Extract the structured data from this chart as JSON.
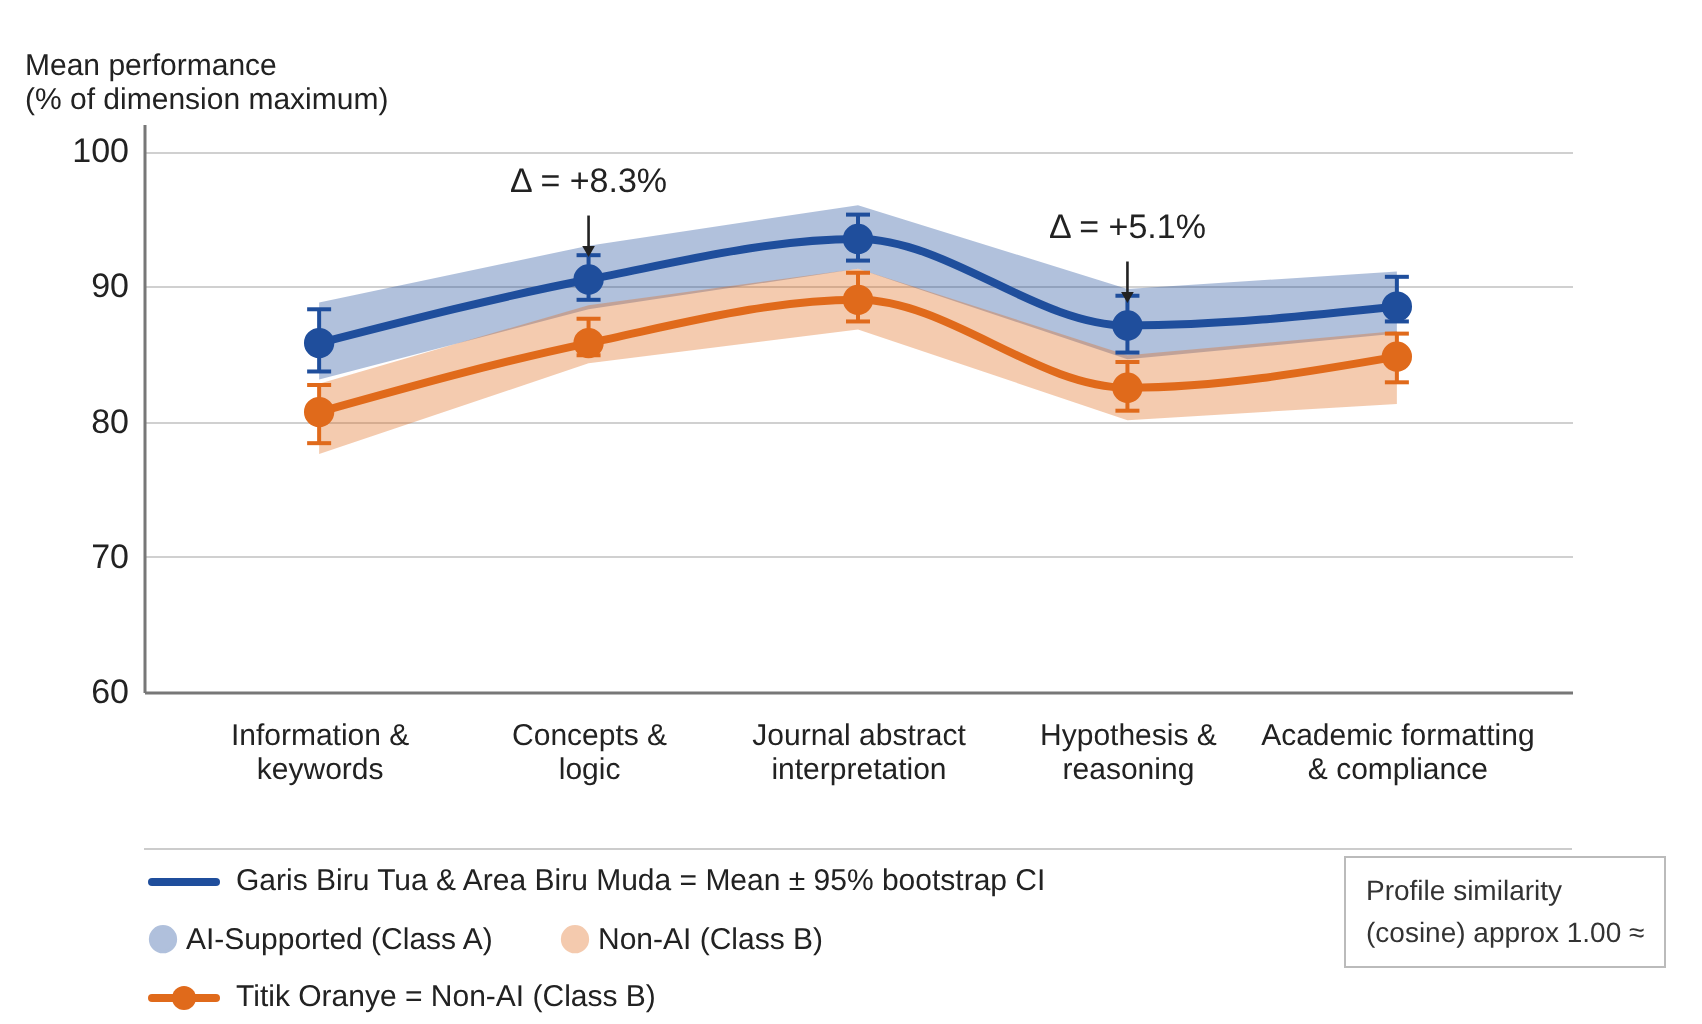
{
  "chart_data": {
    "type": "line",
    "ylabel": [
      "Mean performance",
      "(% of dimension maximum)"
    ],
    "categories": [
      "Information &\nkeywords",
      "Concepts &\nlogic",
      "Journal abstract\ninterpretation",
      "Hypothesis &\nreasoning",
      "Academic formatting\n& compliance"
    ],
    "series": [
      {
        "name": "AI-Supported (Class A)",
        "color": "#1f4e9c",
        "values": [
          85.8,
          90.5,
          93.5,
          87.1,
          88.5
        ],
        "errors": [
          [
            83.7,
            88.3
          ],
          [
            89.0,
            92.3
          ],
          [
            91.9,
            95.3
          ],
          [
            85.1,
            89.3
          ],
          [
            87.4,
            90.7
          ]
        ],
        "lower": [
          83.1,
          88.3,
          91.3,
          84.6,
          86.5
        ],
        "upper": [
          88.8,
          93.0,
          96.0,
          89.8,
          91.1
        ]
      },
      {
        "name": "Non-AI (Class B)",
        "color": "#e06a1b",
        "values": [
          80.7,
          85.8,
          89.0,
          82.5,
          84.8
        ],
        "errors": [
          [
            78.4,
            82.7
          ],
          [
            84.9,
            87.6
          ],
          [
            87.4,
            91.0
          ],
          [
            80.8,
            84.4
          ],
          [
            82.9,
            86.5
          ]
        ],
        "lower": [
          77.6,
          84.3,
          86.8,
          80.1,
          81.3
        ],
        "upper": [
          82.8,
          88.6,
          91.3,
          84.9,
          86.7
        ]
      }
    ],
    "ylim": [
      60,
      102
    ],
    "yticks": [
      60,
      70,
      80,
      90,
      100
    ],
    "grid": "y",
    "marker": "circle",
    "legend": "bottom",
    "annotations": [
      {
        "text": "Δ = +8.3%",
        "x": "Concepts &\nlogic",
        "y": 90.5
      },
      {
        "text": "Δ = +5.1%",
        "x": "Hypothesis &\nreasoning",
        "y": 87.1
      },
      "Garis Biru Tua & Area Biru Muda = Mean ± 95% bootstrap CI",
      "Titik Oranye = Non-AI (Class B)",
      "Profile similarity\n(cosine) approx 1.00 ≈"
    ]
  }
}
